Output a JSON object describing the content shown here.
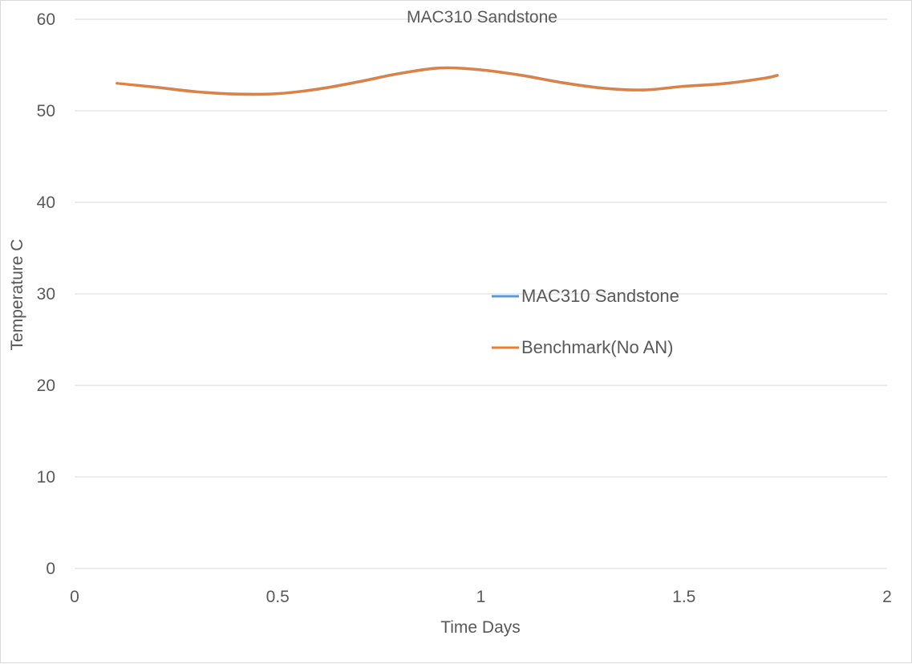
{
  "chart_data": {
    "type": "line",
    "title": "MAC310 Sandstone",
    "xlabel": "Time Days",
    "ylabel": "Temperature C",
    "xlim": [
      0,
      2
    ],
    "ylim": [
      0,
      60
    ],
    "x_ticks": [
      "0",
      "0.5",
      "1",
      "1.5",
      "2"
    ],
    "y_ticks": [
      "0",
      "10",
      "20",
      "30",
      "40",
      "50",
      "60"
    ],
    "grid": "horizontal",
    "legend": "center-right",
    "series": [
      {
        "name": "MAC310 Sandstone",
        "color": "#5b9bd5",
        "x": [
          0.104,
          0.2,
          0.3,
          0.4,
          0.5,
          0.6,
          0.7,
          0.8,
          0.9,
          1.0,
          1.1,
          1.2,
          1.3,
          1.4,
          1.5,
          1.6,
          1.7,
          1.73
        ],
        "y": [
          53.0,
          52.6,
          52.1,
          51.85,
          51.9,
          52.4,
          53.2,
          54.1,
          54.7,
          54.5,
          53.9,
          53.1,
          52.5,
          52.3,
          52.7,
          53.0,
          53.6,
          53.9
        ]
      },
      {
        "name": "Benchmark(No AN)",
        "color": "#ed7d31",
        "x": [
          0.104,
          0.2,
          0.3,
          0.4,
          0.5,
          0.6,
          0.7,
          0.8,
          0.9,
          1.0,
          1.1,
          1.2,
          1.3,
          1.4,
          1.5,
          1.6,
          1.7,
          1.73
        ],
        "y": [
          53.0,
          52.55,
          52.05,
          51.8,
          51.85,
          52.35,
          53.15,
          54.05,
          54.65,
          54.45,
          53.85,
          53.05,
          52.45,
          52.25,
          52.65,
          52.95,
          53.55,
          53.85
        ]
      }
    ]
  }
}
